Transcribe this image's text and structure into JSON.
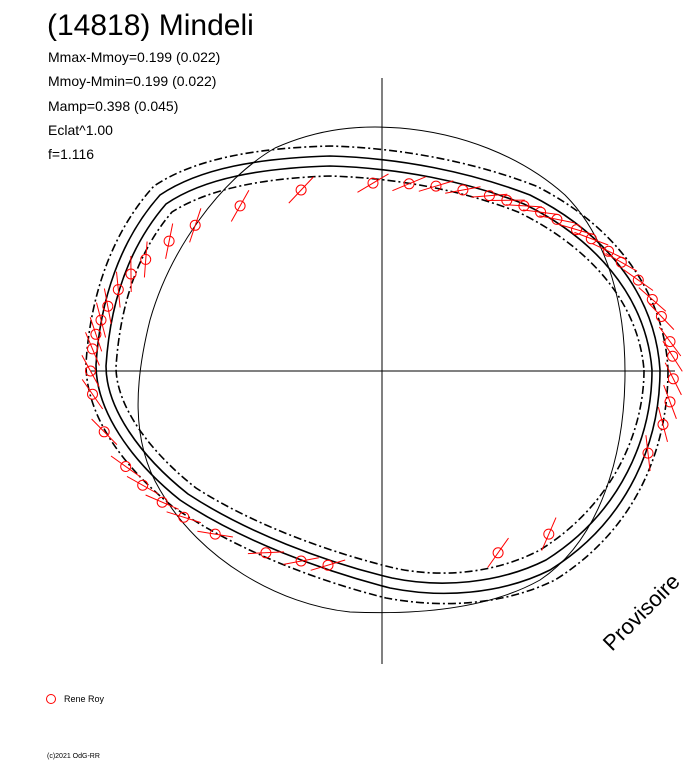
{
  "header": {
    "title": "(14818) Mindeli",
    "stats": [
      "Mmax-Mmoy=0.199 (0.022)",
      "Mmoy-Mmin=0.199 (0.022)",
      "Mamp=0.398 (0.045)",
      "Eclat^1.00",
      "f=1.116"
    ]
  },
  "watermark": "Provisoire",
  "legend": {
    "observer": "Rene Roy",
    "marker_color": "#ff0000"
  },
  "footer": {
    "copyright": "(c)2021 OdG-RR"
  },
  "chart_data": {
    "type": "polar-lightcurve",
    "mean_radius": 1.0,
    "amplitude": 0.398,
    "observation_color": "#ff0000",
    "curve_color": "#000000",
    "observations_deg": [
      4,
      8,
      15,
      20,
      26,
      32,
      36,
      41,
      45,
      50,
      54,
      58,
      62,
      66,
      72,
      78,
      84,
      92,
      108,
      122,
      133,
      140,
      147,
      152,
      157,
      162,
      166,
      170,
      174,
      180,
      186,
      196,
      206,
      212,
      218,
      224,
      232,
      244,
      252,
      258,
      296,
      308,
      338,
      346,
      352,
      358
    ]
  }
}
